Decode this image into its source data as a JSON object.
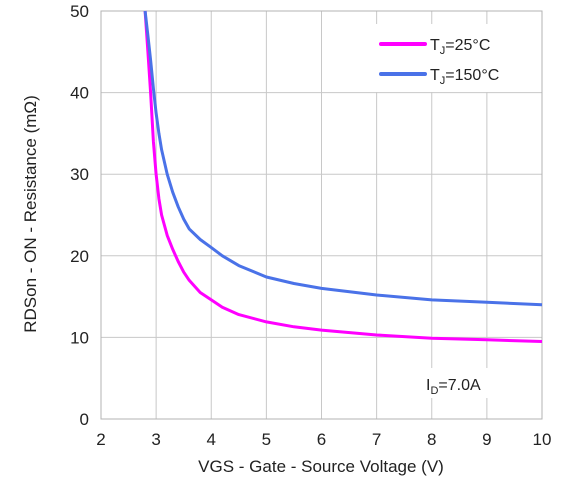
{
  "chart_data": {
    "type": "line",
    "xlabel": "VGS - Gate - Source Voltage (V)",
    "ylabel": "RDSon - ON - Resistance (mΩ)",
    "xlim": [
      2,
      10
    ],
    "ylim": [
      0,
      50
    ],
    "xticks": [
      "2",
      "3",
      "4",
      "5",
      "6",
      "7",
      "8",
      "9",
      "10"
    ],
    "yticks": [
      "0",
      "10",
      "20",
      "30",
      "40",
      "50"
    ],
    "grid": true,
    "legend_position": "top-right",
    "annotation": {
      "main": "I",
      "sub": "D",
      "rest": "=7.0A"
    },
    "series": [
      {
        "label_main": "T",
        "label_sub": "J",
        "label_rest": "=25°C",
        "color": "#ff00ff",
        "x": [
          2.8,
          2.85,
          2.9,
          2.95,
          3.0,
          3.05,
          3.1,
          3.2,
          3.3,
          3.4,
          3.5,
          3.6,
          3.8,
          4.0,
          4.2,
          4.5,
          5.0,
          5.5,
          6.0,
          7.0,
          8.0,
          9.0,
          10.0
        ],
        "y": [
          50.0,
          45.0,
          40.0,
          34.0,
          30.0,
          27.0,
          25.0,
          22.5,
          20.8,
          19.3,
          18.0,
          17.0,
          15.5,
          14.6,
          13.7,
          12.8,
          11.9,
          11.3,
          10.9,
          10.3,
          9.9,
          9.7,
          9.5
        ]
      },
      {
        "label_main": "T",
        "label_sub": "J",
        "label_rest": "=150°C",
        "color": "#4a72e8",
        "x": [
          2.8,
          2.85,
          2.9,
          2.95,
          3.0,
          3.05,
          3.1,
          3.2,
          3.3,
          3.4,
          3.5,
          3.6,
          3.8,
          4.0,
          4.2,
          4.5,
          5.0,
          5.5,
          6.0,
          7.0,
          8.0,
          9.0,
          10.0
        ],
        "y": [
          50.0,
          47.0,
          44.0,
          40.5,
          37.5,
          35.0,
          33.0,
          30.0,
          27.8,
          26.0,
          24.5,
          23.3,
          22.0,
          21.0,
          20.0,
          18.8,
          17.4,
          16.6,
          16.0,
          15.2,
          14.6,
          14.3,
          14.0
        ]
      }
    ]
  }
}
